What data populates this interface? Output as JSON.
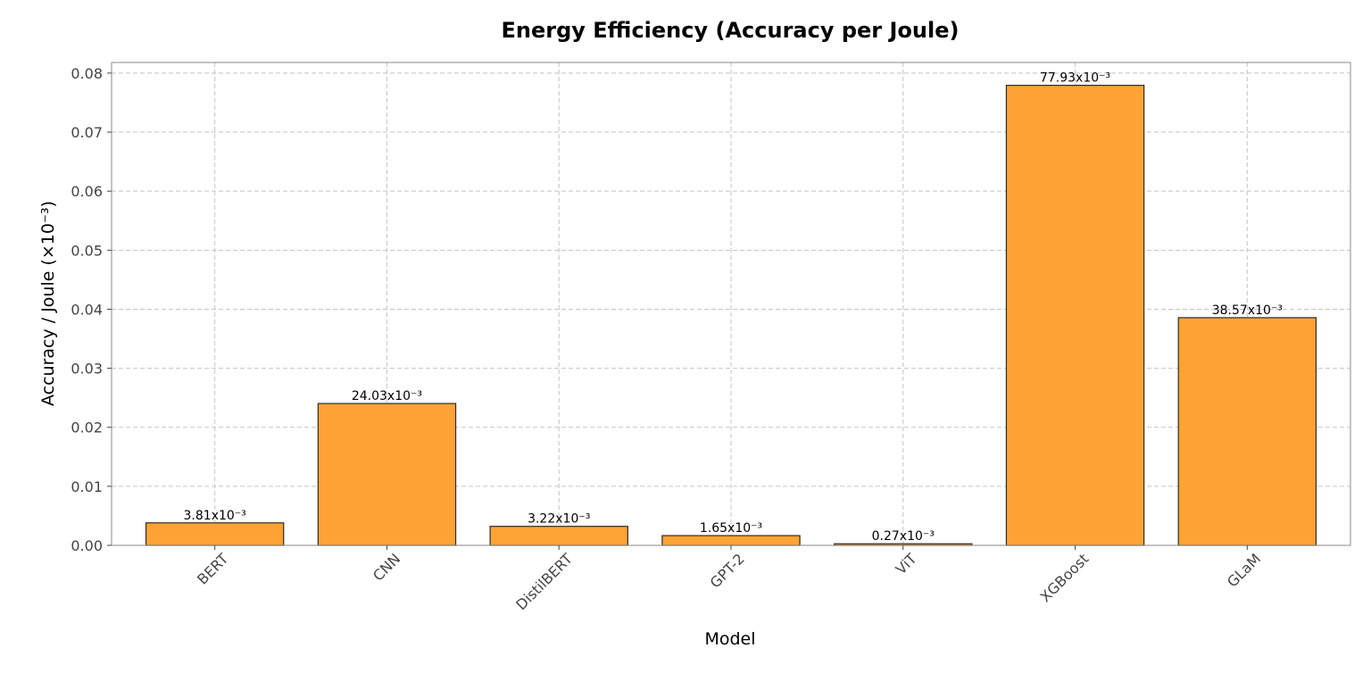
{
  "chart_data": {
    "type": "bar",
    "title": "Energy Efficiency (Accuracy per Joule)",
    "xlabel": "Model",
    "ylabel": "Accuracy / Joule (×10⁻³)",
    "categories": [
      "BERT",
      "CNN",
      "DistilBERT",
      "GPT-2",
      "ViT",
      "XGBoost",
      "GLaM"
    ],
    "values": [
      0.00381,
      0.02403,
      0.00322,
      0.00165,
      0.00027,
      0.07793,
      0.03857
    ],
    "data_labels": [
      "3.81x10⁻³",
      "24.03x10⁻³",
      "3.22x10⁻³",
      "1.65x10⁻³",
      "0.27x10⁻³",
      "77.93x10⁻³",
      "38.57x10⁻³"
    ],
    "yticks": [
      0.0,
      0.01,
      0.02,
      0.03,
      0.04,
      0.05,
      0.06,
      0.07,
      0.08
    ],
    "ytick_labels": [
      "0.00",
      "0.01",
      "0.02",
      "0.03",
      "0.04",
      "0.05",
      "0.06",
      "0.07",
      "0.08"
    ],
    "ylim": [
      0,
      0.0818
    ],
    "grid": true,
    "bar_color": "#ffa334",
    "bar_edge_color": "#2b2b2b",
    "xtick_rotation": 45
  }
}
